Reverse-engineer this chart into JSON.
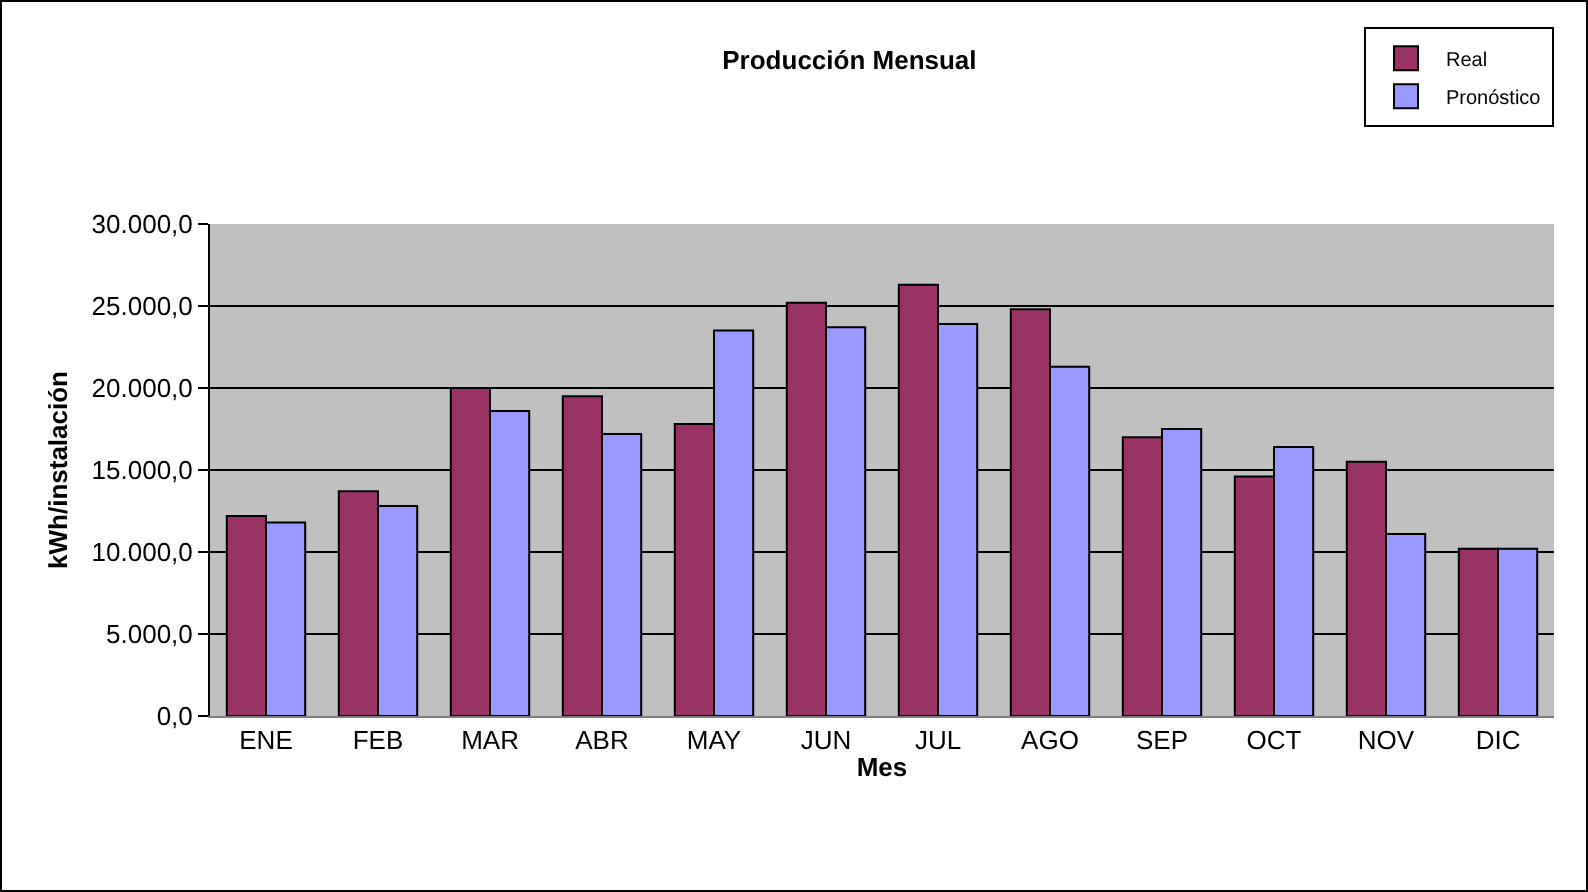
{
  "chart_data": {
    "type": "bar",
    "title": "Producción Mensual",
    "xlabel": "Mes",
    "ylabel": "kWh/instalación",
    "categories": [
      "ENE",
      "FEB",
      "MAR",
      "ABR",
      "MAY",
      "JUN",
      "JUL",
      "AGO",
      "SEP",
      "OCT",
      "NOV",
      "DIC"
    ],
    "series": [
      {
        "name": "Real",
        "color": "#993366",
        "values": [
          12200,
          13700,
          20000,
          19500,
          17800,
          25200,
          26300,
          24800,
          17000,
          14600,
          15500,
          10200
        ]
      },
      {
        "name": "Pronóstico",
        "color": "#9999ff",
        "values": [
          11800,
          12800,
          18600,
          17200,
          23500,
          23700,
          23900,
          21300,
          17500,
          16400,
          11100,
          10200
        ]
      }
    ],
    "ylim": [
      0,
      30000
    ],
    "yticks": [
      {
        "value": 0,
        "label": "0,0"
      },
      {
        "value": 5000,
        "label": "5.000,0"
      },
      {
        "value": 10000,
        "label": "10.000,0"
      },
      {
        "value": 15000,
        "label": "15.000,0"
      },
      {
        "value": 20000,
        "label": "20.000,0"
      },
      {
        "value": 25000,
        "label": "25.000,0"
      },
      {
        "value": 30000,
        "label": "30.000,0"
      }
    ],
    "grid": "y",
    "legend": "top right"
  }
}
